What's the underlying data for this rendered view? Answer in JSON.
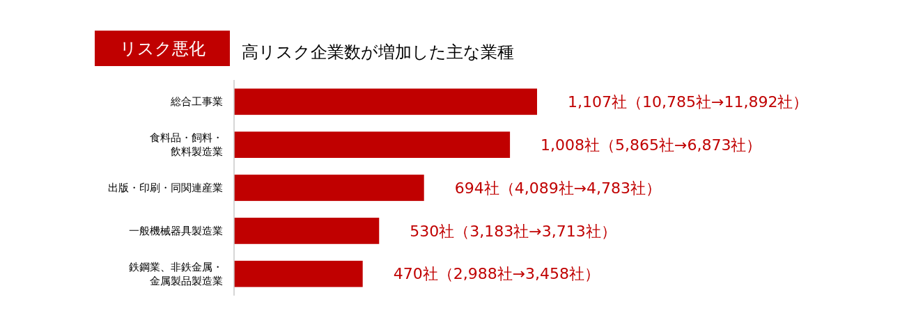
{
  "chart_data": {
    "type": "bar",
    "orientation": "horizontal",
    "title": "リスク悪化",
    "subtitle": "高リスク企業数が増加した主な業種",
    "categories": [
      "総合工事業",
      "食料品・飼料・飲料製造業",
      "出版・印刷・同関連産業",
      "一般機械器具製造業",
      "鉄鋼業、非鉄金属・金属製品製造業"
    ],
    "values": [
      1107,
      1008,
      694,
      530,
      470
    ],
    "value_labels": [
      "1,107社（10,785社→11,892社）",
      "1,008社（5,865社→6,873社）",
      "694社（4,089社→4,783社）",
      "530社（3,183社→3,713社）",
      "470社（2,988社→3,458社）"
    ],
    "color": "#c00000"
  }
}
